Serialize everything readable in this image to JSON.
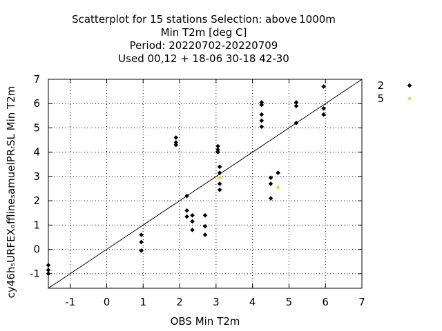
{
  "chart_data": {
    "type": "scatter",
    "title_lines": [
      "Scatterplot for   15 stations Selection: above 1000m",
      "Min T2m [deg C]",
      "Period: 20220702-20220709",
      "Used  00,12  + 18-06 30-18 42-30"
    ],
    "xlabel": "OBS Min T2m",
    "ylabel": "cy46hₛURFEXₒfflineₛamuelPRᵣSL Min T2m",
    "xlim": [
      -1.6,
      7.0
    ],
    "ylim": [
      -1.6,
      7.0
    ],
    "xticks": [
      -1,
      0,
      1,
      2,
      3,
      4,
      5,
      6,
      7
    ],
    "yticks": [
      -1,
      0,
      1,
      2,
      3,
      4,
      5,
      6,
      7
    ],
    "grid": true,
    "diagonal": true,
    "legend_position": "right",
    "series": [
      {
        "name": "2",
        "color": "#000000",
        "points": [
          [
            -1.6,
            -0.65
          ],
          [
            -1.6,
            -0.85
          ],
          [
            -1.6,
            -1.0
          ],
          [
            0.95,
            0.6
          ],
          [
            0.95,
            0.3
          ],
          [
            0.95,
            -0.05
          ],
          [
            1.9,
            4.6
          ],
          [
            1.9,
            4.4
          ],
          [
            1.9,
            4.3
          ],
          [
            2.2,
            2.2
          ],
          [
            2.2,
            1.6
          ],
          [
            2.2,
            1.35
          ],
          [
            2.35,
            1.4
          ],
          [
            2.35,
            1.15
          ],
          [
            2.35,
            0.8
          ],
          [
            2.7,
            1.4
          ],
          [
            2.7,
            0.95
          ],
          [
            2.7,
            0.6
          ],
          [
            3.05,
            4.25
          ],
          [
            3.05,
            4.1
          ],
          [
            3.05,
            4.0
          ],
          [
            3.1,
            3.4
          ],
          [
            3.1,
            3.15
          ],
          [
            3.1,
            2.7
          ],
          [
            3.1,
            2.45
          ],
          [
            4.25,
            6.05
          ],
          [
            4.25,
            5.95
          ],
          [
            4.25,
            5.55
          ],
          [
            4.25,
            5.3
          ],
          [
            4.25,
            5.05
          ],
          [
            4.5,
            2.95
          ],
          [
            4.5,
            2.7
          ],
          [
            4.5,
            2.1
          ],
          [
            4.7,
            3.15
          ],
          [
            5.2,
            6.05
          ],
          [
            5.2,
            5.9
          ],
          [
            5.2,
            5.2
          ],
          [
            5.95,
            6.7
          ],
          [
            5.95,
            5.8
          ],
          [
            5.95,
            5.55
          ]
        ]
      },
      {
        "name": "5",
        "color": "#f0d848",
        "points": [
          [
            3.1,
            2.95
          ],
          [
            4.7,
            2.55
          ]
        ]
      }
    ]
  }
}
